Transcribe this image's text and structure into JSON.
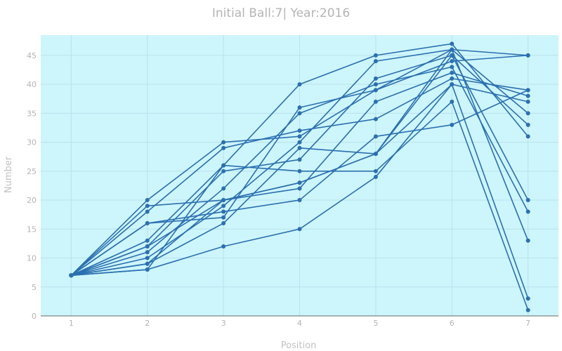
{
  "chart_data": {
    "type": "line",
    "title": "Initial Ball:7| Year:2016",
    "xlabel": "Position",
    "ylabel": "Number",
    "x": [
      1,
      2,
      3,
      4,
      5,
      6,
      7
    ],
    "xlim": [
      0.6,
      7.4
    ],
    "ylim": [
      0,
      48.5
    ],
    "x_ticks": [
      "1",
      "2",
      "3",
      "4",
      "5",
      "6",
      "7"
    ],
    "y_ticks": [
      "0",
      "5",
      "10",
      "15",
      "20",
      "25",
      "30",
      "35",
      "40",
      "45"
    ],
    "grid": true,
    "legend": "none",
    "colors": {
      "plot_background": "#cdf5fc",
      "line": "#2b70b0",
      "grid": "#b8e2ea",
      "axis": "#666666"
    },
    "series": [
      {
        "values": [
          7,
          20,
          30,
          31,
          39,
          46,
          45
        ]
      },
      {
        "values": [
          7,
          19,
          20,
          22,
          37,
          42,
          38
        ]
      },
      {
        "values": [
          7,
          18,
          29,
          32,
          34,
          41,
          39
        ]
      },
      {
        "values": [
          7,
          16,
          17,
          36,
          39,
          44,
          45
        ]
      },
      {
        "values": [
          7,
          16,
          18,
          20,
          31,
          33,
          39
        ]
      },
      {
        "values": [
          7,
          13,
          26,
          40,
          45,
          47,
          31
        ]
      },
      {
        "values": [
          7,
          12,
          25,
          27,
          41,
          45,
          20
        ]
      },
      {
        "values": [
          7,
          11,
          22,
          35,
          40,
          43,
          18
        ]
      },
      {
        "values": [
          7,
          10,
          19,
          30,
          44,
          46,
          13
        ]
      },
      {
        "values": [
          7,
          9,
          16,
          29,
          28,
          40,
          3
        ]
      },
      {
        "values": [
          7,
          8,
          26,
          25,
          25,
          37,
          1
        ]
      },
      {
        "values": [
          7,
          8,
          12,
          15,
          24,
          40,
          37
        ]
      },
      {
        "values": [
          7,
          9,
          20,
          23,
          28,
          46,
          35
        ]
      },
      {
        "values": [
          7,
          12,
          20,
          23,
          28,
          45,
          33
        ]
      }
    ]
  }
}
